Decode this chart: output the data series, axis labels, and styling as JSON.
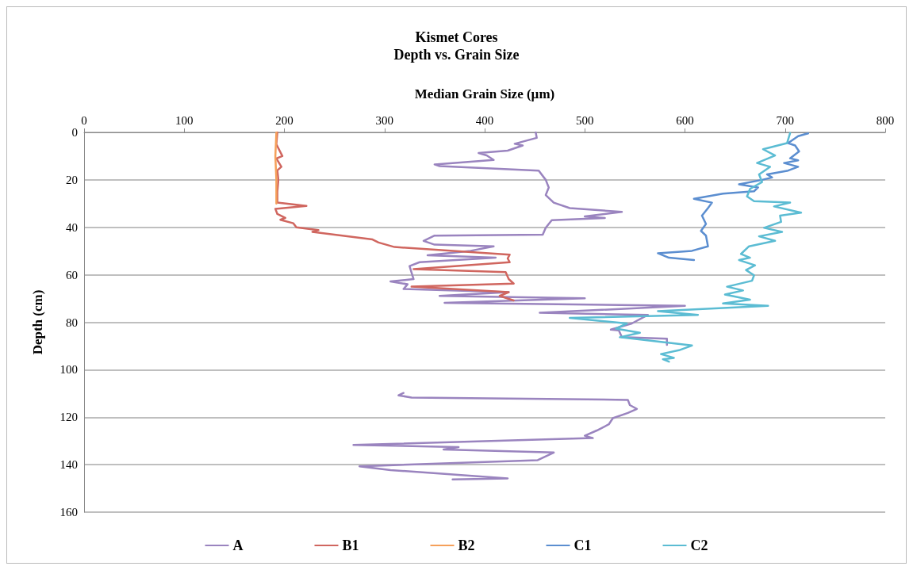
{
  "chart_data": {
    "type": "line",
    "title": "Kismet Cores",
    "subtitle": "Depth vs. Grain Size",
    "xlabel": "Median Grain Size (µm)",
    "ylabel": "Depth (cm)",
    "xlim": [
      0,
      800
    ],
    "xticks": [
      0,
      100,
      200,
      300,
      400,
      500,
      600,
      700,
      800
    ],
    "ylim": [
      160,
      0
    ],
    "yticks": [
      0,
      20,
      40,
      60,
      80,
      100,
      120,
      140,
      160
    ],
    "grid": "y",
    "legend": "bottom",
    "marker": "none",
    "line_style": "solid",
    "series": [
      {
        "name": "A",
        "color": "#9a84bf",
        "x": [
          451,
          452,
          430,
          438,
          423,
          394,
          402,
          409,
          350,
          355,
          454,
          461,
          464,
          461,
          469,
          485,
          537,
          500,
          520,
          467,
          461,
          458,
          350,
          339,
          350,
          409,
          386,
          343,
          411,
          335,
          325,
          329,
          306,
          323,
          319,
          424,
          355,
          500,
          360,
          600,
          455,
          563,
          547,
          526,
          534,
          537,
          582,
          582,
          null,
          319,
          314,
          327,
          543,
          545,
          552,
          543,
          528,
          524,
          512,
          500,
          508,
          269,
          374,
          359,
          469,
          453,
          275,
          306,
          360,
          423,
          368
        ],
        "values": [
          0,
          2.3,
          4.8,
          5.5,
          7.7,
          8.7,
          9.7,
          11.6,
          13.5,
          14.2,
          16.1,
          20,
          23.2,
          26.4,
          29.6,
          31.9,
          33.5,
          35.4,
          36.1,
          37,
          40.2,
          43.1,
          43.5,
          45.7,
          47.3,
          48,
          49.9,
          51.8,
          52.8,
          54.7,
          56.3,
          61.8,
          62.8,
          64,
          66,
          67.3,
          68.9,
          69.9,
          71.8,
          73.1,
          76,
          76.9,
          80.5,
          83.1,
          83.4,
          86.3,
          86.9,
          89.5,
          null,
          109.8,
          110.8,
          111.7,
          112.7,
          114.9,
          116.5,
          118.2,
          120.4,
          123,
          125.6,
          127.8,
          128.8,
          131.7,
          132.6,
          133.6,
          134.9,
          138.1,
          140.7,
          142.3,
          143.9,
          145.8,
          146.2
        ]
      },
      {
        "name": "B1",
        "color": "#d0665f",
        "x": [
          193,
          192,
          198,
          192,
          197,
          193,
          194,
          193,
          193,
          222,
          191,
          193,
          201,
          196,
          209,
          212,
          234,
          228,
          288,
          294,
          310,
          425,
          423,
          425,
          329,
          421,
          424,
          429,
          327,
          424,
          415,
          429
        ],
        "values": [
          0,
          5,
          10,
          11,
          14.5,
          16,
          20,
          25,
          29.6,
          31,
          32.2,
          34.4,
          36,
          36.8,
          38.3,
          40,
          41.2,
          41.9,
          45.1,
          46.4,
          48.3,
          51.5,
          53.1,
          54.7,
          57.6,
          58.9,
          61.8,
          63.7,
          65,
          67.3,
          68.9,
          70.8
        ]
      },
      {
        "name": "B2",
        "color": "#f5a05a",
        "x": [
          192,
          191,
          192,
          192
        ],
        "values": [
          0,
          10,
          20,
          30
        ]
      },
      {
        "name": "C1",
        "color": "#5b8ed0",
        "x": [
          723,
          713,
          703,
          710,
          714,
          705,
          713,
          699,
          713,
          703,
          682,
          687,
          677,
          654,
          673,
          669,
          638,
          609,
          627,
          623,
          617,
          621,
          616,
          621,
          623,
          607,
          573,
          584,
          609
        ],
        "values": [
          0.4,
          1.6,
          4.5,
          5.5,
          8,
          10.9,
          11.8,
          12.9,
          14.5,
          16.1,
          17.7,
          19,
          20,
          21.9,
          23.2,
          24.8,
          25.8,
          28,
          29.6,
          31.9,
          35.1,
          38.6,
          41.5,
          43.5,
          48,
          49.9,
          50.9,
          52.8,
          53.8
        ]
      },
      {
        "name": "C2",
        "color": "#5bbcd3",
        "x": [
          705,
          702,
          678,
          690,
          672,
          685,
          674,
          677,
          665,
          662,
          669,
          705,
          689,
          716,
          695,
          696,
          679,
          697,
          674,
          690,
          664,
          656,
          665,
          654,
          670,
          661,
          669,
          667,
          642,
          658,
          640,
          665,
          638,
          683,
          573,
          613,
          485,
          542,
          531,
          555,
          535,
          607,
          594,
          576,
          589,
          578,
          584
        ],
        "values": [
          0.3,
          4.5,
          7.1,
          9.7,
          12.9,
          14.5,
          17.7,
          20.9,
          23.8,
          27,
          29,
          29.6,
          31.2,
          33.8,
          35.1,
          37.7,
          40.2,
          41.9,
          43.8,
          45.7,
          48,
          51.2,
          52.8,
          53.8,
          56,
          58,
          60.2,
          62.5,
          65,
          66.6,
          68.3,
          70.5,
          72.1,
          73.1,
          75.3,
          76.9,
          78.2,
          80.5,
          82.7,
          84.4,
          86.3,
          89.8,
          91.8,
          93.4,
          95,
          95.6,
          96.6
        ]
      }
    ]
  }
}
